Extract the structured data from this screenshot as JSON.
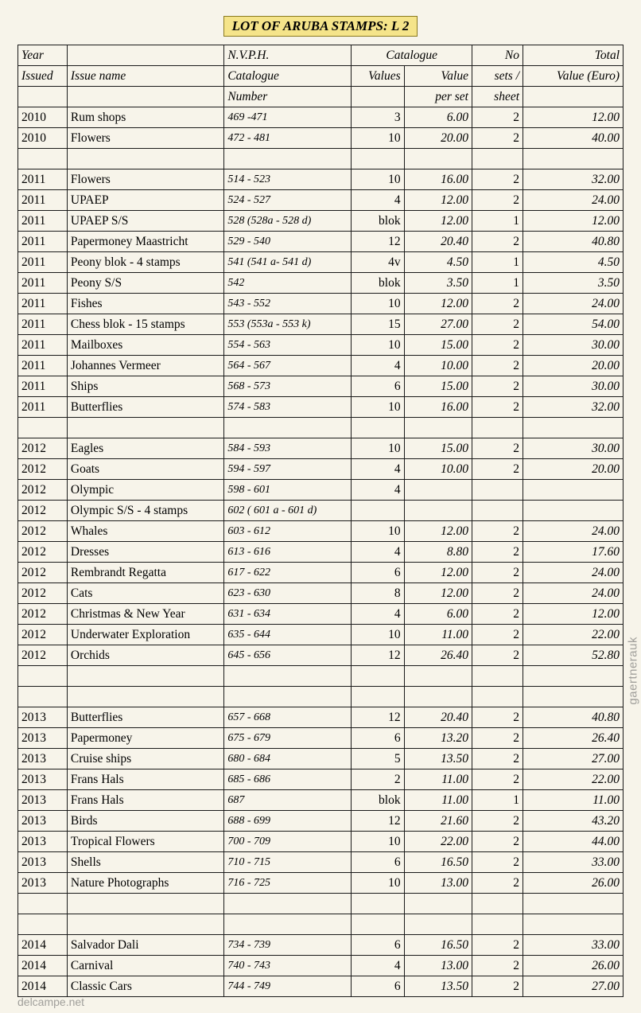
{
  "title": "LOT OF ARUBA STAMPS: L 2",
  "watermark": "gaertnerauk",
  "footer": "delcampe.net",
  "header1": {
    "c2": "N.V.P.H.",
    "c34": "Catalogue",
    "c5": "No",
    "c6": "Total"
  },
  "header2": {
    "c0": "Year",
    "c1": "Issue name",
    "c2": "Catalogue",
    "c3": "Values",
    "c4": "Value",
    "c5": "sets /",
    "c6": "Value (Euro)"
  },
  "header3": {
    "c0": "Issued",
    "c2": "Number",
    "c4": "per set",
    "c5": "sheet"
  },
  "rows": [
    {
      "y": "2010",
      "n": "Rum shops",
      "cat": "469 -471",
      "v": "3",
      "pv": "6.00",
      "s": "2",
      "t": "12.00"
    },
    {
      "y": "2010",
      "n": "Flowers",
      "cat": "472 - 481",
      "v": "10",
      "pv": "20.00",
      "s": "2",
      "t": "40.00"
    },
    {
      "blank": true
    },
    {
      "y": "2011",
      "n": "Flowers",
      "cat": "514 - 523",
      "v": "10",
      "pv": "16.00",
      "s": "2",
      "t": "32.00"
    },
    {
      "y": "2011",
      "n": "UPAEP",
      "cat": "524 - 527",
      "v": "4",
      "pv": "12.00",
      "s": "2",
      "t": "24.00"
    },
    {
      "y": "2011",
      "n": "UPAEP S/S",
      "cat": "528 (528a - 528 d)",
      "v": "blok",
      "pv": "12.00",
      "s": "1",
      "t": "12.00"
    },
    {
      "y": "2011",
      "n": "Papermoney Maastricht",
      "cat": "529 - 540",
      "v": "12",
      "pv": "20.40",
      "s": "2",
      "t": "40.80"
    },
    {
      "y": "2011",
      "n": "Peony blok - 4 stamps",
      "cat": "541 (541 a- 541 d)",
      "v": "4v",
      "pv": "4.50",
      "s": "1",
      "t": "4.50"
    },
    {
      "y": "2011",
      "n": "Peony S/S",
      "cat": "542",
      "v": "blok",
      "pv": "3.50",
      "s": "1",
      "t": "3.50"
    },
    {
      "y": "2011",
      "n": "Fishes",
      "cat": "543 - 552",
      "v": "10",
      "pv": "12.00",
      "s": "2",
      "t": "24.00"
    },
    {
      "y": "2011",
      "n": "Chess blok - 15 stamps",
      "cat": "553 (553a - 553 k)",
      "v": "15",
      "pv": "27.00",
      "s": "2",
      "t": "54.00"
    },
    {
      "y": "2011",
      "n": "Mailboxes",
      "cat": "554 - 563",
      "v": "10",
      "pv": "15.00",
      "s": "2",
      "t": "30.00"
    },
    {
      "y": "2011",
      "n": "Johannes Vermeer",
      "cat": "564 - 567",
      "v": "4",
      "pv": "10.00",
      "s": "2",
      "t": "20.00"
    },
    {
      "y": "2011",
      "n": "Ships",
      "cat": "568 - 573",
      "v": "6",
      "pv": "15.00",
      "s": "2",
      "t": "30.00"
    },
    {
      "y": "2011",
      "n": "Butterflies",
      "cat": "574 - 583",
      "v": "10",
      "pv": "16.00",
      "s": "2",
      "t": "32.00"
    },
    {
      "blank": true
    },
    {
      "y": "2012",
      "n": "Eagles",
      "cat": "584 - 593",
      "v": "10",
      "pv": "15.00",
      "s": "2",
      "t": "30.00"
    },
    {
      "y": "2012",
      "n": "Goats",
      "cat": "594 - 597",
      "v": "4",
      "pv": "10.00",
      "s": "2",
      "t": "20.00"
    },
    {
      "y": "2012",
      "n": "Olympic",
      "cat": "598 - 601",
      "v": "4",
      "pv": "",
      "s": "",
      "t": ""
    },
    {
      "y": "2012",
      "n": "Olympic S/S - 4 stamps",
      "cat": "602 ( 601 a - 601 d)",
      "v": "",
      "pv": "",
      "s": "",
      "t": ""
    },
    {
      "y": "2012",
      "n": "Whales",
      "cat": "603 - 612",
      "v": "10",
      "pv": "12.00",
      "s": "2",
      "t": "24.00"
    },
    {
      "y": "2012",
      "n": "Dresses",
      "cat": "613 - 616",
      "v": "4",
      "pv": "8.80",
      "s": "2",
      "t": "17.60"
    },
    {
      "y": "2012",
      "n": "Rembrandt Regatta",
      "cat": "617 - 622",
      "v": "6",
      "pv": "12.00",
      "s": "2",
      "t": "24.00"
    },
    {
      "y": "2012",
      "n": "Cats",
      "cat": "623 - 630",
      "v": "8",
      "pv": "12.00",
      "s": "2",
      "t": "24.00"
    },
    {
      "y": "2012",
      "n": "Christmas & New Year",
      "cat": "631 - 634",
      "v": "4",
      "pv": "6.00",
      "s": "2",
      "t": "12.00"
    },
    {
      "y": "2012",
      "n": "Underwater Exploration",
      "cat": "635 - 644",
      "v": "10",
      "pv": "11.00",
      "s": "2",
      "t": "22.00"
    },
    {
      "y": "2012",
      "n": "Orchids",
      "cat": "645 - 656",
      "v": "12",
      "pv": "26.40",
      "s": "2",
      "t": "52.80"
    },
    {
      "blank": true
    },
    {
      "blank": true
    },
    {
      "y": "2013",
      "n": "Butterflies",
      "cat": "657 - 668",
      "v": "12",
      "pv": "20.40",
      "s": "2",
      "t": "40.80"
    },
    {
      "y": "2013",
      "n": "Papermoney",
      "cat": "675 - 679",
      "v": "6",
      "pv": "13.20",
      "s": "2",
      "t": "26.40"
    },
    {
      "y": "2013",
      "n": "Cruise ships",
      "cat": "680 - 684",
      "v": "5",
      "pv": "13.50",
      "s": "2",
      "t": "27.00"
    },
    {
      "y": "2013",
      "n": "Frans Hals",
      "cat": "685 - 686",
      "v": "2",
      "pv": "11.00",
      "s": "2",
      "t": "22.00"
    },
    {
      "y": "2013",
      "n": "Frans Hals",
      "cat": "687",
      "v": "blok",
      "pv": "11.00",
      "s": "1",
      "t": "11.00"
    },
    {
      "y": "2013",
      "n": "Birds",
      "cat": "688 - 699",
      "v": "12",
      "pv": "21.60",
      "s": "2",
      "t": "43.20"
    },
    {
      "y": "2013",
      "n": "Tropical Flowers",
      "cat": "700 - 709",
      "v": "10",
      "pv": "22.00",
      "s": "2",
      "t": "44.00"
    },
    {
      "y": "2013",
      "n": "Shells",
      "cat": "710 - 715",
      "v": "6",
      "pv": "16.50",
      "s": "2",
      "t": "33.00"
    },
    {
      "y": "2013",
      "n": "Nature Photographs",
      "cat": "716 - 725",
      "v": "10",
      "pv": "13.00",
      "s": "2",
      "t": "26.00"
    },
    {
      "blank": true
    },
    {
      "blank": true
    },
    {
      "y": "2014",
      "n": "Salvador Dali",
      "cat": "734 - 739",
      "v": "6",
      "pv": "16.50",
      "s": "2",
      "t": "33.00"
    },
    {
      "y": "2014",
      "n": "Carnival",
      "cat": "740 - 743",
      "v": "4",
      "pv": "13.00",
      "s": "2",
      "t": "26.00"
    },
    {
      "y": "2014",
      "n": "Classic Cars",
      "cat": "744 - 749",
      "v": "6",
      "pv": "13.50",
      "s": "2",
      "t": "27.00"
    }
  ]
}
